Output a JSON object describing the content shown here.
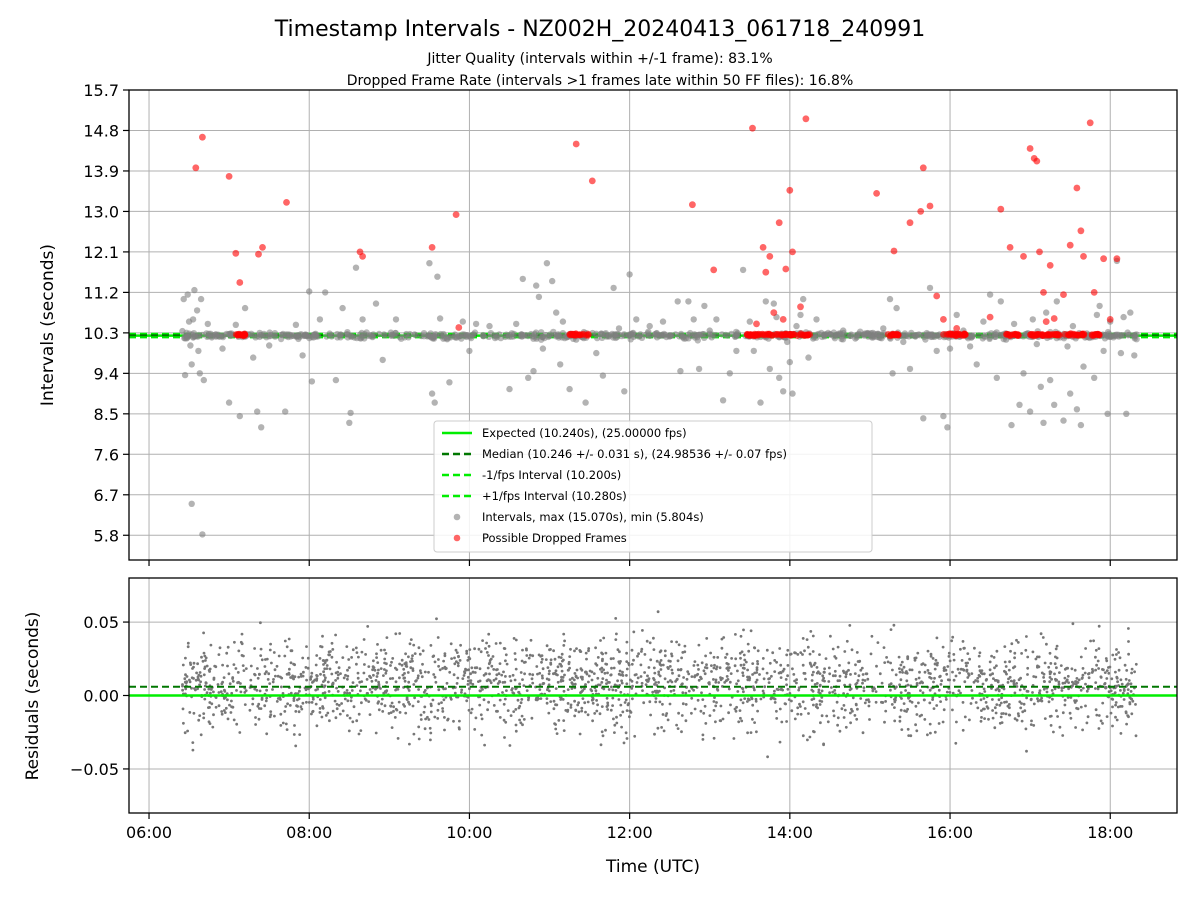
{
  "chart_data": [
    {
      "type": "scatter",
      "title": "Timestamp Intervals - NZ002H_20240413_061718_240991",
      "subtitle_1": "Jitter Quality (intervals within +/-1 frame): 83.1%",
      "subtitle_2": "Dropped Frame Rate (intervals >1 frames late within 50 FF files): 16.8%",
      "ylabel": "Intervals (seconds)",
      "xlabel": "",
      "xlim": [
        "05:45",
        "18:50"
      ],
      "ylim": [
        5.25,
        15.7
      ],
      "yticks": [
        "15.7",
        "14.8",
        "13.9",
        "13.0",
        "12.1",
        "11.2",
        "10.3",
        "9.4",
        "8.5",
        "7.6",
        "6.7",
        "5.8"
      ],
      "grid": "on",
      "legend_position": "lower-center",
      "lines": [
        {
          "name": "Expected (10.240s), (25.00000 fps)",
          "y": 10.24,
          "style": "solid",
          "color": "#00ee00"
        },
        {
          "name": "Median (10.246 +/- 0.031 s), (24.98536 +/- 0.07 fps)",
          "y": 10.246,
          "style": "dashed",
          "color": "#007700"
        },
        {
          "name": "-1/fps Interval (10.200s)",
          "y": 10.2,
          "style": "dashed",
          "color": "#00ee00"
        },
        {
          "name": "+1/fps Interval (10.280s)",
          "y": 10.28,
          "style": "dashed",
          "color": "#00ee00"
        }
      ],
      "series": [
        {
          "name": "Intervals, max (15.070s), min (5.804s)",
          "color": "#808080",
          "points": [
            [
              "06:25",
              10.34
            ],
            [
              "06:26",
              11.05
            ],
            [
              "06:27",
              9.36
            ],
            [
              "06:29",
              11.15
            ],
            [
              "06:30",
              10.55
            ],
            [
              "06:31",
              10.02
            ],
            [
              "06:32",
              9.6
            ],
            [
              "06:32",
              6.5
            ],
            [
              "06:33",
              10.6
            ],
            [
              "06:34",
              11.25
            ],
            [
              "06:36",
              10.8
            ],
            [
              "06:37",
              9.9
            ],
            [
              "06:38",
              9.4
            ],
            [
              "06:39",
              11.05
            ],
            [
              "06:40",
              5.82
            ],
            [
              "06:41",
              9.25
            ],
            [
              "06:44",
              10.5
            ],
            [
              "06:47",
              10.2
            ],
            [
              "06:55",
              9.95
            ],
            [
              "07:00",
              8.75
            ],
            [
              "07:05",
              10.48
            ],
            [
              "07:08",
              8.45
            ],
            [
              "07:12",
              10.85
            ],
            [
              "07:18",
              9.75
            ],
            [
              "07:21",
              8.55
            ],
            [
              "07:24",
              8.2
            ],
            [
              "07:30",
              10.02
            ],
            [
              "07:42",
              8.55
            ],
            [
              "07:50",
              10.48
            ],
            [
              "07:55",
              9.8
            ],
            [
              "08:00",
              11.22
            ],
            [
              "08:02",
              9.22
            ],
            [
              "08:08",
              10.6
            ],
            [
              "08:12",
              11.2
            ],
            [
              "08:20",
              9.25
            ],
            [
              "08:25",
              10.85
            ],
            [
              "08:30",
              8.3
            ],
            [
              "08:31",
              8.52
            ],
            [
              "08:35",
              11.75
            ],
            [
              "08:40",
              10.6
            ],
            [
              "08:50",
              10.95
            ],
            [
              "08:55",
              9.7
            ],
            [
              "09:05",
              10.6
            ],
            [
              "09:30",
              11.85
            ],
            [
              "09:32",
              8.95
            ],
            [
              "09:34",
              8.75
            ],
            [
              "09:36",
              11.55
            ],
            [
              "09:38",
              10.62
            ],
            [
              "09:45",
              9.2
            ],
            [
              "09:55",
              10.55
            ],
            [
              "10:00",
              9.9
            ],
            [
              "10:05",
              10.5
            ],
            [
              "10:15",
              10.45
            ],
            [
              "10:30",
              9.05
            ],
            [
              "10:35",
              10.5
            ],
            [
              "10:40",
              11.5
            ],
            [
              "10:44",
              9.3
            ],
            [
              "10:48",
              9.45
            ],
            [
              "10:50",
              11.35
            ],
            [
              "10:52",
              11.1
            ],
            [
              "10:55",
              9.95
            ],
            [
              "10:58",
              11.85
            ],
            [
              "11:02",
              11.45
            ],
            [
              "11:05",
              10.75
            ],
            [
              "11:08",
              9.6
            ],
            [
              "11:10",
              10.55
            ],
            [
              "11:15",
              9.05
            ],
            [
              "11:20",
              10.15
            ],
            [
              "11:27",
              8.75
            ],
            [
              "11:35",
              9.85
            ],
            [
              "11:40",
              9.35
            ],
            [
              "11:48",
              11.3
            ],
            [
              "11:52",
              10.4
            ],
            [
              "11:56",
              9.0
            ],
            [
              "12:00",
              11.6
            ],
            [
              "12:05",
              10.6
            ],
            [
              "12:15",
              10.45
            ],
            [
              "12:25",
              10.55
            ],
            [
              "12:36",
              11.0
            ],
            [
              "12:38",
              9.45
            ],
            [
              "12:40",
              10.2
            ],
            [
              "12:44",
              11.0
            ],
            [
              "12:48",
              10.6
            ],
            [
              "12:52",
              9.5
            ],
            [
              "12:56",
              10.9
            ],
            [
              "13:00",
              10.35
            ],
            [
              "13:05",
              10.6
            ],
            [
              "13:10",
              8.8
            ],
            [
              "13:15",
              9.4
            ],
            [
              "13:20",
              9.9
            ],
            [
              "13:25",
              11.7
            ],
            [
              "13:30",
              10.55
            ],
            [
              "13:33",
              9.9
            ],
            [
              "13:38",
              8.75
            ],
            [
              "13:42",
              11.0
            ],
            [
              "13:45",
              9.5
            ],
            [
              "13:48",
              10.95
            ],
            [
              "13:50",
              10.65
            ],
            [
              "13:52",
              9.3
            ],
            [
              "13:55",
              9.0
            ],
            [
              "13:58",
              10.1
            ],
            [
              "14:00",
              9.65
            ],
            [
              "14:02",
              8.95
            ],
            [
              "14:05",
              10.45
            ],
            [
              "14:08",
              10.7
            ],
            [
              "14:10",
              11.05
            ],
            [
              "14:14",
              9.75
            ],
            [
              "14:20",
              10.6
            ],
            [
              "14:40",
              10.35
            ],
            [
              "14:50",
              10.2
            ],
            [
              "15:10",
              10.4
            ],
            [
              "15:15",
              11.05
            ],
            [
              "15:17",
              9.4
            ],
            [
              "15:20",
              10.85
            ],
            [
              "15:25",
              10.1
            ],
            [
              "15:30",
              9.5
            ],
            [
              "15:35",
              10.25
            ],
            [
              "15:40",
              8.4
            ],
            [
              "15:45",
              11.3
            ],
            [
              "15:50",
              9.9
            ],
            [
              "15:55",
              8.45
            ],
            [
              "15:58",
              8.2
            ],
            [
              "16:00",
              9.95
            ],
            [
              "16:05",
              10.7
            ],
            [
              "16:10",
              10.35
            ],
            [
              "16:15",
              10.0
            ],
            [
              "16:20",
              9.6
            ],
            [
              "16:25",
              10.55
            ],
            [
              "16:30",
              11.15
            ],
            [
              "16:35",
              9.3
            ],
            [
              "16:38",
              11.0
            ],
            [
              "16:42",
              10.15
            ],
            [
              "16:46",
              8.25
            ],
            [
              "16:48",
              10.5
            ],
            [
              "16:52",
              8.7
            ],
            [
              "16:55",
              9.4
            ],
            [
              "17:00",
              8.55
            ],
            [
              "17:02",
              10.6
            ],
            [
              "17:05",
              10.05
            ],
            [
              "17:08",
              9.1
            ],
            [
              "17:10",
              8.3
            ],
            [
              "17:12",
              10.75
            ],
            [
              "17:15",
              9.25
            ],
            [
              "17:18",
              8.7
            ],
            [
              "17:20",
              11.0
            ],
            [
              "17:25",
              8.35
            ],
            [
              "17:28",
              10.0
            ],
            [
              "17:30",
              8.95
            ],
            [
              "17:32",
              10.45
            ],
            [
              "17:35",
              8.6
            ],
            [
              "17:38",
              8.25
            ],
            [
              "17:40",
              9.55
            ],
            [
              "17:45",
              10.25
            ],
            [
              "17:48",
              9.3
            ],
            [
              "17:50",
              10.7
            ],
            [
              "17:52",
              10.9
            ],
            [
              "17:55",
              9.9
            ],
            [
              "17:58",
              8.5
            ],
            [
              "18:00",
              10.55
            ],
            [
              "18:05",
              11.9
            ],
            [
              "18:08",
              9.85
            ],
            [
              "18:10",
              10.65
            ],
            [
              "18:12",
              8.5
            ],
            [
              "18:15",
              10.75
            ],
            [
              "18:18",
              9.8
            ]
          ]
        },
        {
          "name": "Possible Dropped Frames",
          "color": "#ff0000",
          "points": [
            [
              "06:35",
              13.97
            ],
            [
              "06:40",
              14.65
            ],
            [
              "07:00",
              13.78
            ],
            [
              "07:05",
              12.07
            ],
            [
              "07:08",
              11.42
            ],
            [
              "07:22",
              12.05
            ],
            [
              "07:25",
              12.2
            ],
            [
              "07:43",
              13.2
            ],
            [
              "08:38",
              12.1
            ],
            [
              "08:40",
              12.0
            ],
            [
              "09:32",
              12.2
            ],
            [
              "09:50",
              12.93
            ],
            [
              "09:52",
              10.42
            ],
            [
              "11:20",
              14.5
            ],
            [
              "11:32",
              13.68
            ],
            [
              "12:47",
              13.15
            ],
            [
              "13:03",
              11.7
            ],
            [
              "13:32",
              14.85
            ],
            [
              "13:35",
              10.5
            ],
            [
              "13:40",
              12.2
            ],
            [
              "13:42",
              11.65
            ],
            [
              "13:45",
              12.0
            ],
            [
              "13:48",
              10.75
            ],
            [
              "13:52",
              12.75
            ],
            [
              "13:55",
              10.6
            ],
            [
              "13:57",
              11.72
            ],
            [
              "14:00",
              13.47
            ],
            [
              "14:02",
              12.1
            ],
            [
              "14:08",
              10.88
            ],
            [
              "14:12",
              15.06
            ],
            [
              "15:05",
              13.4
            ],
            [
              "15:18",
              12.12
            ],
            [
              "15:30",
              12.75
            ],
            [
              "15:38",
              13.0
            ],
            [
              "15:40",
              13.97
            ],
            [
              "15:45",
              13.12
            ],
            [
              "15:50",
              11.12
            ],
            [
              "15:55",
              10.6
            ],
            [
              "16:05",
              10.4
            ],
            [
              "16:30",
              10.65
            ],
            [
              "16:38",
              13.05
            ],
            [
              "16:45",
              12.2
            ],
            [
              "16:55",
              12.0
            ],
            [
              "17:00",
              14.4
            ],
            [
              "17:03",
              14.18
            ],
            [
              "17:05",
              14.12
            ],
            [
              "17:07",
              12.1
            ],
            [
              "17:10",
              11.2
            ],
            [
              "17:12",
              10.55
            ],
            [
              "17:15",
              11.8
            ],
            [
              "17:18",
              10.62
            ],
            [
              "17:25",
              11.15
            ],
            [
              "17:30",
              12.25
            ],
            [
              "17:35",
              13.52
            ],
            [
              "17:38",
              12.57
            ],
            [
              "17:40",
              12.0
            ],
            [
              "17:45",
              14.97
            ],
            [
              "17:48",
              11.2
            ],
            [
              "17:55",
              11.95
            ],
            [
              "18:00",
              10.6
            ],
            [
              "18:05",
              11.95
            ]
          ]
        }
      ]
    },
    {
      "type": "scatter",
      "title": "",
      "xlabel": "Time (UTC)",
      "ylabel": "Residuals (seconds)",
      "xlim": [
        "05:45",
        "18:50"
      ],
      "ylim": [
        -0.08,
        0.08
      ],
      "yticks": [
        "0.05",
        "0.00",
        "−0.05"
      ],
      "xticks": [
        "06:00",
        "08:00",
        "10:00",
        "12:00",
        "14:00",
        "16:00",
        "18:00"
      ],
      "grid": "on",
      "lines": [
        {
          "name": "zero",
          "y": 0.0,
          "style": "solid",
          "color": "#00ee00"
        },
        {
          "name": "median residual",
          "y": 0.006,
          "style": "dashed",
          "color": "#007700"
        }
      ],
      "series": [
        {
          "name": "",
          "color": "#777777",
          "x_range": [
            "06:25",
            "18:20"
          ],
          "count": 2400,
          "y_mean": 0.008,
          "y_std": 0.022
        }
      ]
    }
  ]
}
